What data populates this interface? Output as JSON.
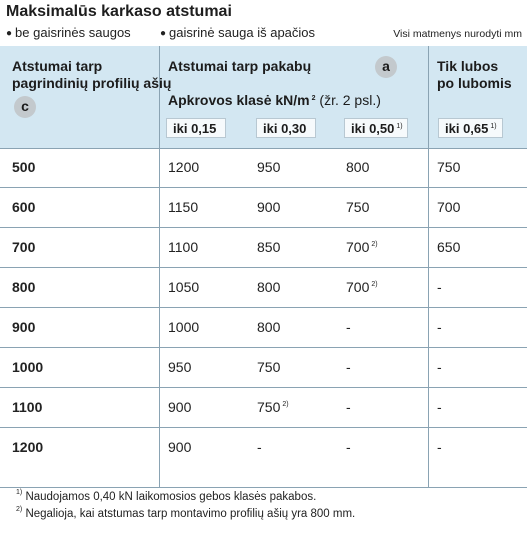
{
  "title": "Maksimalūs karkaso atstumai",
  "legend": {
    "item1": "be gaisrinės saugos",
    "item2": "gaisrinė sauga iš apačios",
    "note": "Visi matmenys nurodyti mm"
  },
  "header": {
    "col1_line1": "Atstumai tarp",
    "col1_line2": "pagrindinių profilių ašių",
    "col1_badge": "c",
    "col2_title": "Atstumai tarp pakabų",
    "col2_badge": "a",
    "load_class": "Apkrovos klasė kN/m",
    "load_class_exp": "2",
    "load_class_ref": " (žr. 2 psl.)",
    "col3_line1": "Tik lubos",
    "col3_line2": "po lubomis",
    "sub": [
      {
        "label": "iki 0,15",
        "sup": ""
      },
      {
        "label": "iki 0,30",
        "sup": ""
      },
      {
        "label": "iki 0,50",
        "sup": "1)"
      },
      {
        "label": "iki 0,65",
        "sup": "1)"
      }
    ]
  },
  "rows": [
    {
      "c": "500",
      "v1": "1200",
      "v2": "950",
      "v2sup": "",
      "v3": "800",
      "v3sup": "",
      "v4": "750"
    },
    {
      "c": "600",
      "v1": "1150",
      "v2": "900",
      "v2sup": "",
      "v3": "750",
      "v3sup": "",
      "v4": "700"
    },
    {
      "c": "700",
      "v1": "1100",
      "v2": "850",
      "v2sup": "",
      "v3": "700",
      "v3sup": "2)",
      "v4": "650"
    },
    {
      "c": "800",
      "v1": "1050",
      "v2": "800",
      "v2sup": "",
      "v3": "700",
      "v3sup": "2)",
      "v4": "-"
    },
    {
      "c": "900",
      "v1": "1000",
      "v2": "800",
      "v2sup": "",
      "v3": "-",
      "v3sup": "",
      "v4": "-"
    },
    {
      "c": "1000",
      "v1": "950",
      "v2": "750",
      "v2sup": "",
      "v3": "-",
      "v3sup": "",
      "v4": "-"
    },
    {
      "c": "1100",
      "v1": "900",
      "v2": "750",
      "v2sup": "2)",
      "v3": "-",
      "v3sup": "",
      "v4": "-"
    },
    {
      "c": "1200",
      "v1": "900",
      "v2": "-",
      "v2sup": "",
      "v3": "-",
      "v3sup": "",
      "v4": "-"
    }
  ],
  "footnotes": [
    {
      "mark": "1)",
      "text": "Naudojamos 0,40 kN laikomosios gebos klasės pakabos."
    },
    {
      "mark": "2)",
      "text": "Negalioja, kai atstumas tarp montavimo profilių ašių yra 800 mm."
    }
  ]
}
